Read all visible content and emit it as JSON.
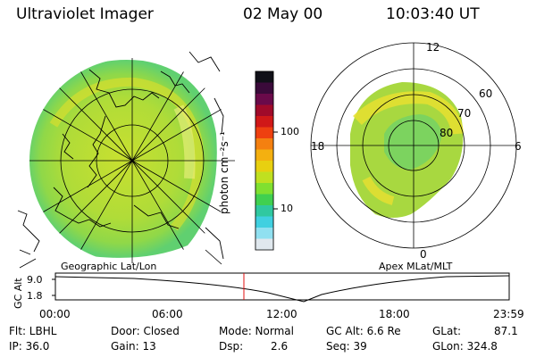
{
  "header": {
    "title": "Ultraviolet Imager",
    "date": "02 May 00",
    "time": "10:03:40 UT"
  },
  "colorbar": {
    "unit_label": "photon cm⁻²s⁻¹",
    "ticks": [
      "100",
      "10"
    ],
    "colors": [
      "#101018",
      "#3a0a3a",
      "#6a0a4a",
      "#a00a2a",
      "#d01818",
      "#ee4010",
      "#f48010",
      "#f4b010",
      "#e8d010",
      "#c0e020",
      "#80e030",
      "#40d050",
      "#30c8a0",
      "#40d0e0",
      "#90e0f0",
      "#e0e8ee"
    ]
  },
  "left_map": {
    "caption": "Geographic Lat/Lon"
  },
  "right_map": {
    "caption": "Apex MLat/MLT",
    "mlt_labels": {
      "top": "12",
      "left": "18",
      "right": "6",
      "bottom": "0"
    },
    "lat_labels": [
      "60",
      "70",
      "80"
    ]
  },
  "timeline": {
    "axis_title": "GC Alt",
    "y_ticks": [
      "9.0",
      "1.8"
    ],
    "x_ticks": [
      "00:00",
      "06:00",
      "12:00",
      "18:00",
      "23:59"
    ],
    "cursor_color": "#e01010"
  },
  "info": {
    "filter": "Flt: LBHL",
    "ip": "IP: 36.0",
    "door": "Door: Closed",
    "gain": "Gain: 13",
    "mode": "Mode: Normal",
    "dsp": "Dsp:",
    "dsp_value": "2.6",
    "gc_alt": "GC Alt: 6.6 Re",
    "seq": "Seq: 39",
    "glat": "GLat:",
    "glat_value": "87.1",
    "glon": "GLon: 324.8"
  }
}
